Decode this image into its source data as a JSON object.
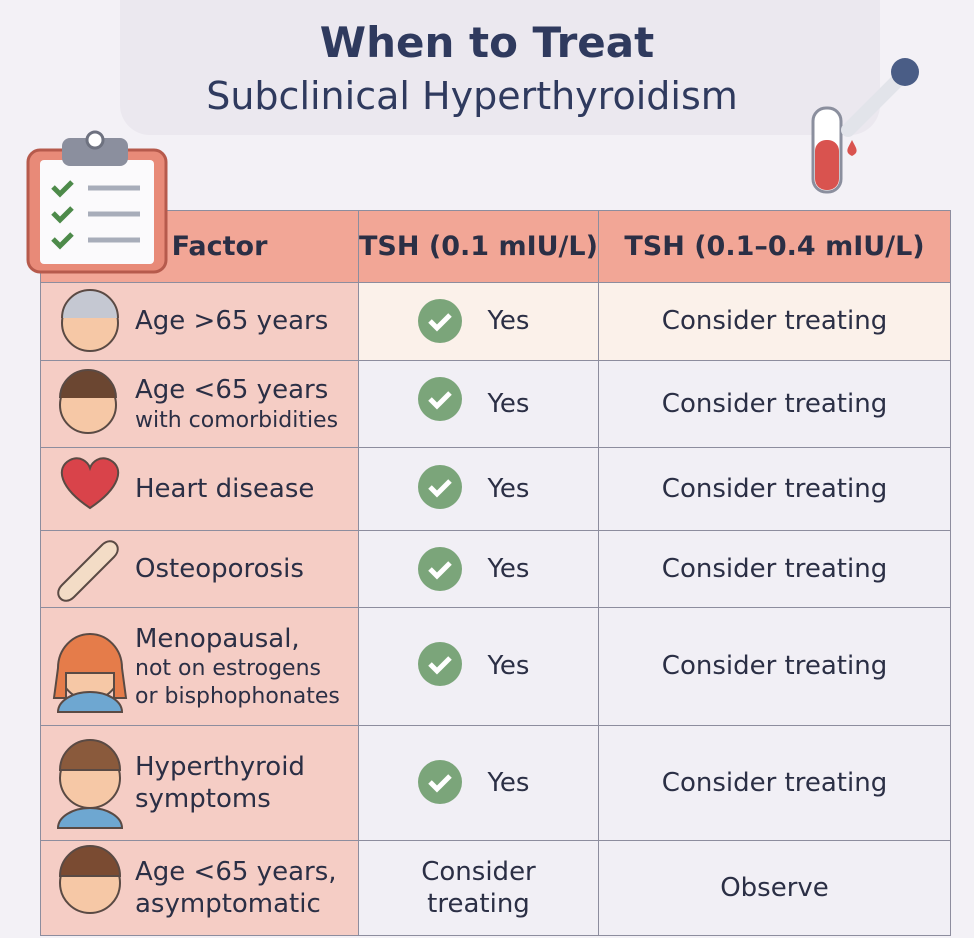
{
  "header": {
    "title": "When to Treat",
    "subtitle": "Subclinical Hyperthyroidism"
  },
  "table": {
    "columns": [
      "Factor",
      "TSH (0.1 mIU/L)",
      "TSH (0.1–0.4 mIU/L)"
    ],
    "rows": [
      [
        [
          "Age >65 years"
        ],
        [
          "Yes"
        ],
        [
          "Consider treating"
        ]
      ],
      [
        [
          "Age <65 years",
          "with comorbidities"
        ],
        [
          "Yes"
        ],
        [
          "Consider treating"
        ]
      ],
      [
        [
          "Heart disease"
        ],
        [
          "Yes"
        ],
        [
          "Consider treating"
        ]
      ],
      [
        [
          "Osteoporosis"
        ],
        [
          "Yes"
        ],
        [
          "Consider treating"
        ]
      ],
      [
        [
          "Menopausal,",
          "not on estrogens",
          "or bisphophonates"
        ],
        [
          "Yes"
        ],
        [
          "Consider treating"
        ]
      ],
      [
        [
          "Hyperthyroid",
          "symptoms"
        ],
        [
          "Yes"
        ],
        [
          "Consider treating"
        ]
      ],
      [
        [
          "Age <65 years,",
          "asymptomatic"
        ],
        [
          "Consider",
          "treating"
        ],
        [
          "Observe"
        ]
      ]
    ]
  }
}
